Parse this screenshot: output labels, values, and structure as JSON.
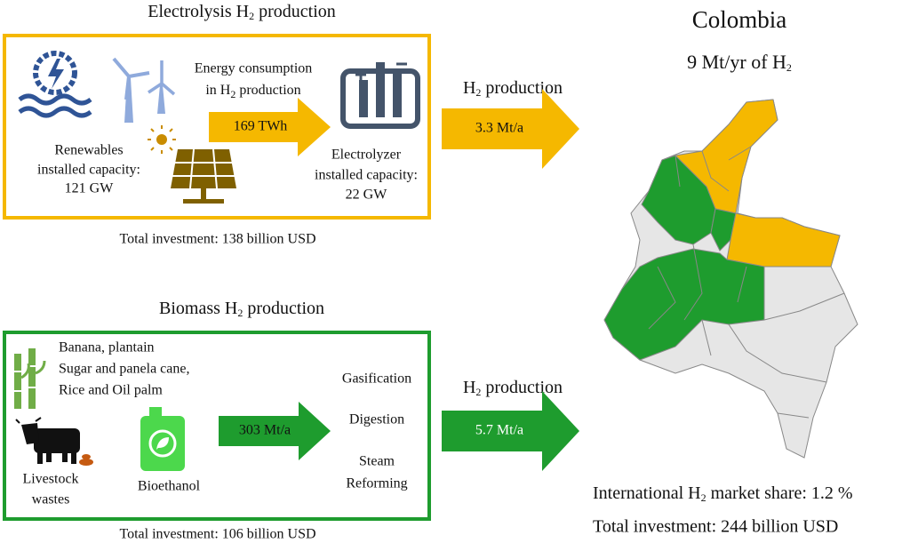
{
  "electrolysis": {
    "title": [
      "Electrolysis H",
      "2",
      " production"
    ],
    "renewables": [
      "Renewables",
      "installed capacity:",
      "121 GW"
    ],
    "energy_label": [
      "Energy consumption",
      "in H",
      "2",
      " production"
    ],
    "energy_value": "169 TWh",
    "electrolyzer": [
      "Electrolyzer",
      "installed capacity:",
      "22 GW"
    ],
    "investment": "Total investment: 138 billion USD",
    "output_label": [
      "H",
      "2",
      " production"
    ],
    "output_value": "3.3 Mt/a"
  },
  "biomass": {
    "title": [
      "Biomass H",
      "2",
      " production"
    ],
    "crops": [
      "Banana, plantain",
      "Sugar and panela cane,",
      "Rice and Oil palm"
    ],
    "livestock": [
      "Livestock",
      "wastes"
    ],
    "bioethanol": "Bioethanol",
    "input_value": "303 Mt/a",
    "processes": [
      "Gasification",
      "Digestion",
      "Steam",
      "Reforming"
    ],
    "investment": "Total investment: 106 billion USD",
    "output_label": [
      "H",
      "2",
      " production"
    ],
    "output_value": "5.7 Mt/a"
  },
  "summary": {
    "country": "Colombia",
    "production": [
      "9 Mt/yr of H",
      "2"
    ],
    "market_share": [
      "International H",
      "2",
      " market share: 1.2 %"
    ],
    "investment": "Total investment: 244 billion USD"
  }
}
